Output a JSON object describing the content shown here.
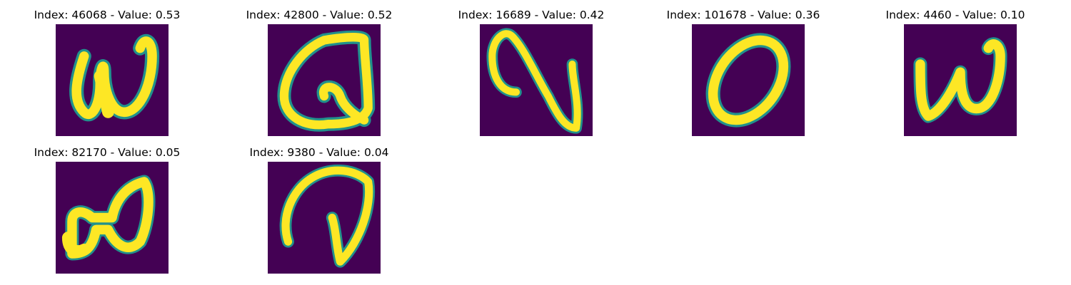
{
  "panels": [
    {
      "title": "Index: 46068 - Value: 0.53",
      "glyph": "w-loop-icon"
    },
    {
      "title": "Index: 42800 - Value: 0.52",
      "glyph": "q-shape-icon"
    },
    {
      "title": "Index: 16689 - Value: 0.42",
      "glyph": "n-shape-icon"
    },
    {
      "title": "Index: 101678 - Value: 0.36",
      "glyph": "zero-shape-icon"
    },
    {
      "title": "Index: 4460 - Value: 0.10",
      "glyph": "w-shape-icon"
    },
    {
      "title": "Index: 82170 - Value: 0.05",
      "glyph": "looped-a-shape-icon"
    },
    {
      "title": "Index: 9380 - Value: 0.04",
      "glyph": "j-hook-shape-icon"
    }
  ],
  "colors": {
    "background": "#440154",
    "stroke": "#fde725",
    "edge": "#21918c"
  }
}
